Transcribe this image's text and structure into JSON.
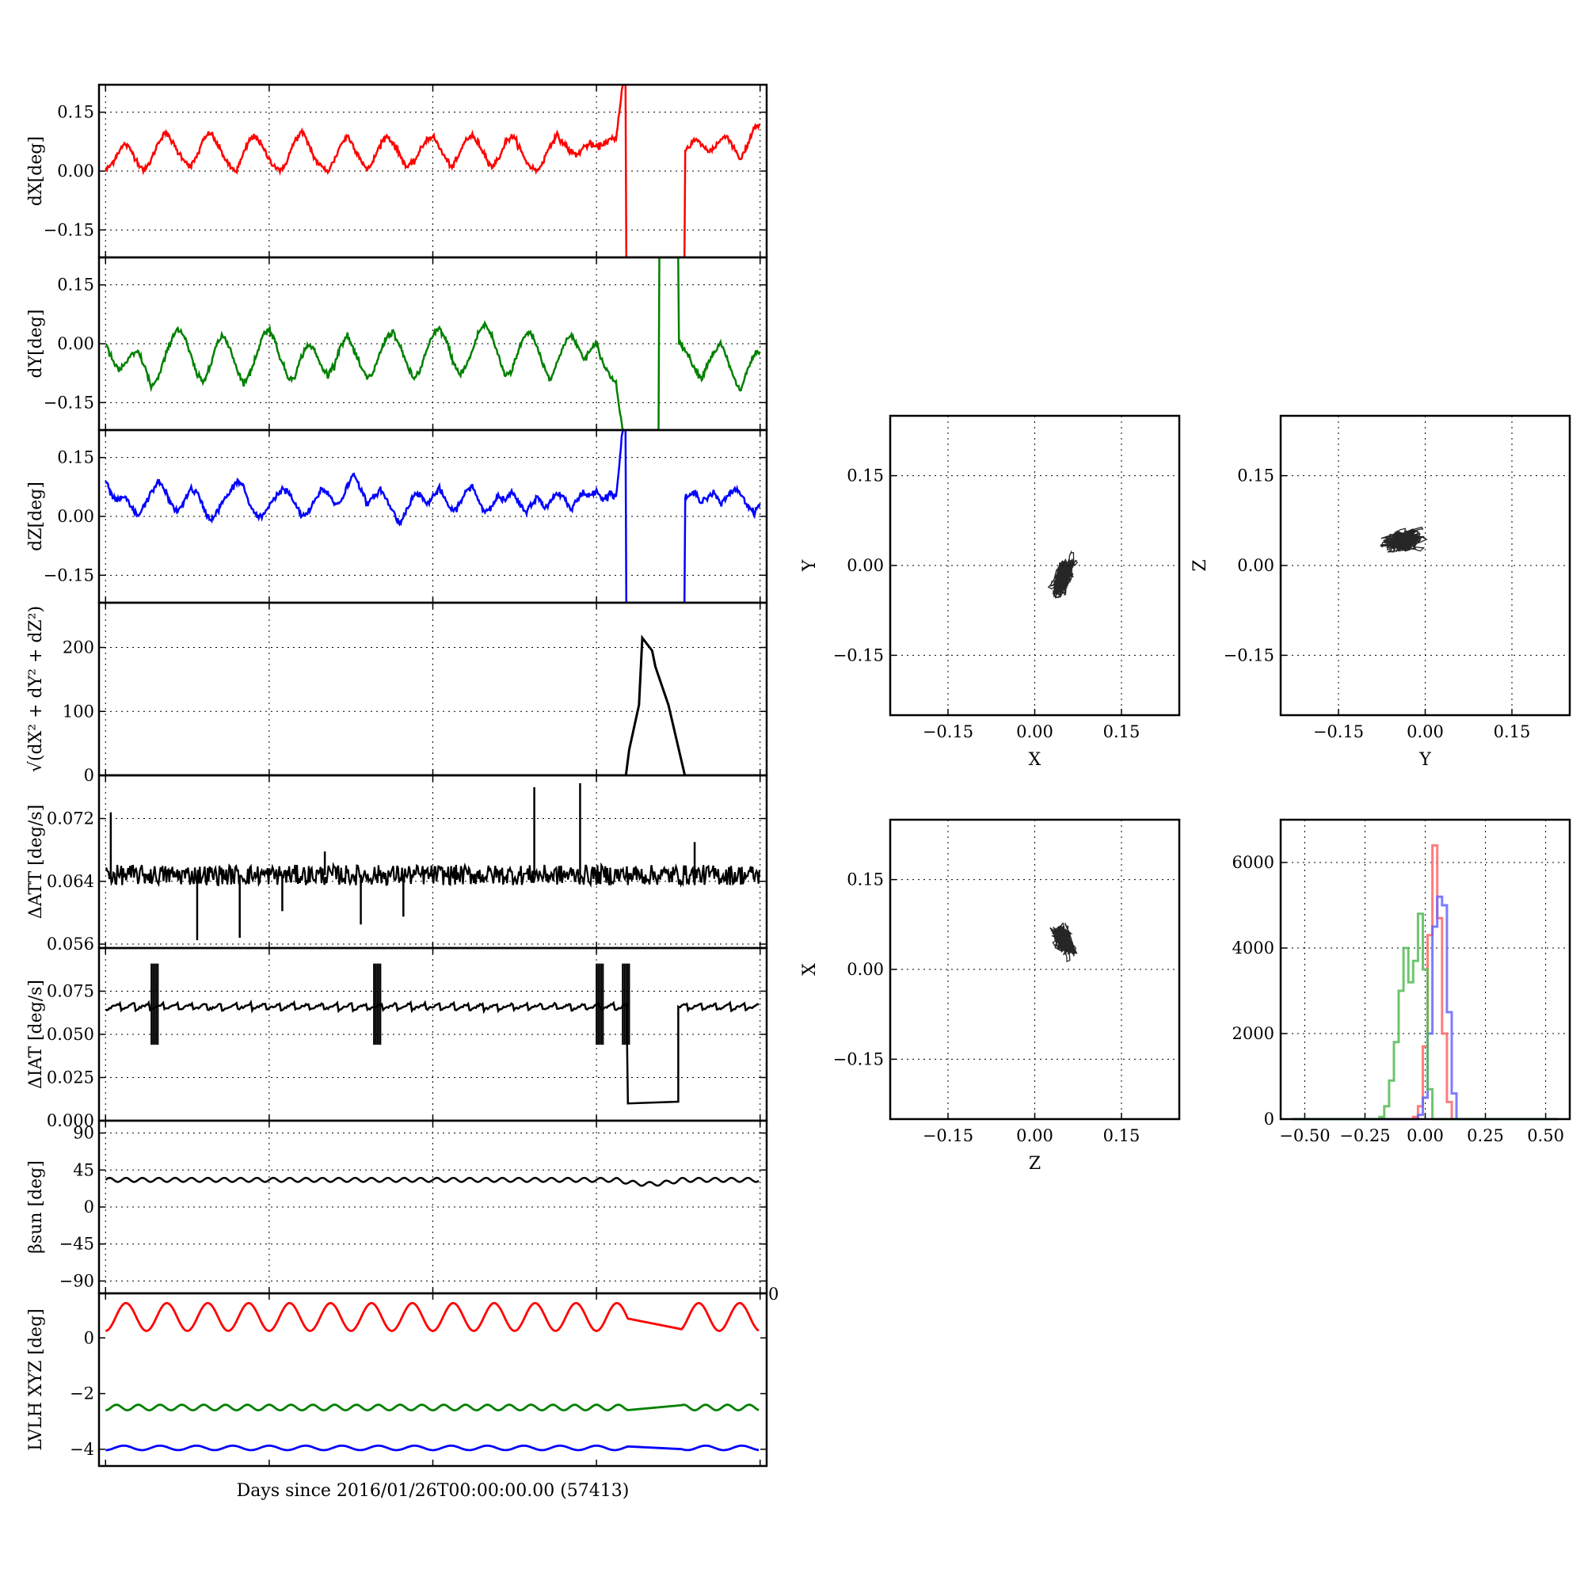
{
  "chart_data": [
    {
      "id": "dX",
      "type": "line",
      "ylabel": "dX[deg]",
      "color": "#ff0000",
      "ylim": [
        -0.22,
        0.22
      ],
      "yticks": [
        -0.15,
        0.0,
        0.15
      ],
      "yticklabels": [
        "−0.15",
        "0.00",
        "0.15"
      ],
      "grid": true,
      "x": [
        0,
        1,
        2,
        3,
        4,
        5,
        6,
        7,
        8,
        9,
        10,
        11,
        12,
        13,
        14,
        15,
        16,
        17,
        18,
        19,
        20,
        21,
        22,
        23,
        24,
        25,
        26,
        27,
        28,
        29,
        30,
        31,
        32,
        33,
        34,
        35,
        36,
        37,
        38,
        39,
        40,
        41,
        42,
        43,
        44,
        45,
        46,
        47,
        48,
        49,
        50,
        51,
        52,
        53,
        54,
        55,
        56,
        57,
        58,
        59,
        60,
        61,
        62,
        63,
        64,
        65,
        66,
        67,
        68,
        69,
        70,
        71,
        72,
        73,
        74,
        75,
        76,
        77,
        78,
        79,
        80,
        81,
        82,
        83,
        84,
        85,
        86,
        87,
        88,
        89,
        90,
        91,
        92,
        93,
        94,
        95,
        96,
        97,
        98,
        99,
        100
      ],
      "y": [
        0.0,
        0.02,
        0.05,
        0.07,
        0.05,
        0.02,
        0.0,
        0.03,
        0.07,
        0.1,
        0.08,
        0.05,
        0.03,
        0.01,
        0.04,
        0.08,
        0.1,
        0.07,
        0.04,
        0.01,
        0.0,
        0.04,
        0.08,
        0.09,
        0.06,
        0.03,
        0.01,
        0.0,
        0.04,
        0.08,
        0.1,
        0.07,
        0.03,
        0.01,
        0.0,
        0.03,
        0.07,
        0.09,
        0.06,
        0.03,
        0.0,
        0.03,
        0.07,
        0.09,
        0.07,
        0.04,
        0.01,
        0.02,
        0.05,
        0.08,
        0.09,
        0.06,
        0.03,
        0.01,
        0.04,
        0.08,
        0.09,
        0.07,
        0.04,
        0.01,
        0.03,
        0.07,
        0.09,
        0.07,
        0.03,
        0.01,
        0.0,
        0.03,
        0.07,
        0.09,
        0.07,
        0.05,
        0.04,
        0.06,
        0.07,
        0.06,
        0.07,
        0.08,
        0.08,
        0.22,
        -0.22,
        -0.22,
        -0.22,
        -0.22,
        -0.22,
        -0.22,
        -0.22,
        -0.22,
        -0.22,
        0.06,
        0.08,
        0.07,
        0.05,
        0.06,
        0.08,
        0.09,
        0.06,
        0.03,
        0.06,
        0.11,
        0.12
      ]
    },
    {
      "id": "dY",
      "type": "line",
      "ylabel": "dY[deg]",
      "color": "#008000",
      "ylim": [
        -0.22,
        0.22
      ],
      "yticks": [
        -0.15,
        0.0,
        0.15
      ],
      "yticklabels": [
        "−0.15",
        "0.00",
        "0.15"
      ],
      "grid": true,
      "x": [
        0,
        1,
        2,
        3,
        4,
        5,
        6,
        7,
        8,
        9,
        10,
        11,
        12,
        13,
        14,
        15,
        16,
        17,
        18,
        19,
        20,
        21,
        22,
        23,
        24,
        25,
        26,
        27,
        28,
        29,
        30,
        31,
        32,
        33,
        34,
        35,
        36,
        37,
        38,
        39,
        40,
        41,
        42,
        43,
        44,
        45,
        46,
        47,
        48,
        49,
        50,
        51,
        52,
        53,
        54,
        55,
        56,
        57,
        58,
        59,
        60,
        61,
        62,
        63,
        64,
        65,
        66,
        67,
        68,
        69,
        70,
        71,
        72,
        73,
        74,
        75,
        76,
        77,
        78,
        79,
        80,
        81,
        82,
        83,
        84,
        85,
        86,
        87,
        88,
        89,
        90,
        91,
        92,
        93,
        94,
        95,
        96,
        97,
        98,
        99,
        100
      ],
      "y": [
        0.0,
        -0.04,
        -0.07,
        -0.05,
        -0.03,
        -0.02,
        -0.06,
        -0.11,
        -0.09,
        -0.04,
        0.01,
        0.04,
        0.02,
        -0.03,
        -0.08,
        -0.1,
        -0.05,
        0.0,
        0.02,
        -0.01,
        -0.06,
        -0.1,
        -0.08,
        -0.03,
        0.02,
        0.04,
        0.0,
        -0.05,
        -0.09,
        -0.08,
        -0.03,
        0.0,
        -0.02,
        -0.06,
        -0.08,
        -0.05,
        0.0,
        0.02,
        -0.02,
        -0.06,
        -0.09,
        -0.07,
        -0.02,
        0.02,
        0.03,
        -0.01,
        -0.05,
        -0.09,
        -0.07,
        -0.02,
        0.02,
        0.04,
        0.01,
        -0.04,
        -0.08,
        -0.06,
        -0.02,
        0.03,
        0.05,
        0.02,
        -0.03,
        -0.08,
        -0.07,
        -0.02,
        0.02,
        0.03,
        -0.01,
        -0.06,
        -0.09,
        -0.05,
        0.0,
        0.02,
        0.0,
        -0.04,
        -0.02,
        0.0,
        -0.05,
        -0.08,
        -0.1,
        -0.22,
        -0.22,
        -0.22,
        -0.22,
        -0.22,
        -0.22,
        0.22,
        0.22,
        0.22,
        0.0,
        -0.03,
        -0.06,
        -0.09,
        -0.05,
        -0.02,
        0.0,
        -0.04,
        -0.09,
        -0.12,
        -0.07,
        -0.03,
        -0.02
      ]
    },
    {
      "id": "dZ",
      "type": "line",
      "ylabel": "dZ[deg]",
      "color": "#0000ff",
      "ylim": [
        -0.22,
        0.22
      ],
      "yticks": [
        -0.15,
        0.0,
        0.15
      ],
      "yticklabels": [
        "−0.15",
        "0.00",
        "0.15"
      ],
      "grid": true,
      "x": [
        0,
        1,
        2,
        3,
        4,
        5,
        6,
        7,
        8,
        9,
        10,
        11,
        12,
        13,
        14,
        15,
        16,
        17,
        18,
        19,
        20,
        21,
        22,
        23,
        24,
        25,
        26,
        27,
        28,
        29,
        30,
        31,
        32,
        33,
        34,
        35,
        36,
        37,
        38,
        39,
        40,
        41,
        42,
        43,
        44,
        45,
        46,
        47,
        48,
        49,
        50,
        51,
        52,
        53,
        54,
        55,
        56,
        57,
        58,
        59,
        60,
        61,
        62,
        63,
        64,
        65,
        66,
        67,
        68,
        69,
        70,
        71,
        72,
        73,
        74,
        75,
        76,
        77,
        78,
        79,
        80,
        81,
        82,
        83,
        84,
        85,
        86,
        87,
        88,
        89,
        90,
        91,
        92,
        93,
        94,
        95,
        96,
        97,
        98,
        99,
        100
      ],
      "y": [
        0.09,
        0.05,
        0.04,
        0.05,
        0.02,
        0.0,
        0.03,
        0.06,
        0.09,
        0.07,
        0.03,
        0.01,
        0.04,
        0.07,
        0.06,
        0.02,
        -0.01,
        0.01,
        0.04,
        0.06,
        0.09,
        0.08,
        0.03,
        0.0,
        0.0,
        0.03,
        0.05,
        0.07,
        0.06,
        0.03,
        0.0,
        0.01,
        0.04,
        0.07,
        0.06,
        0.03,
        0.04,
        0.08,
        0.11,
        0.07,
        0.03,
        0.05,
        0.07,
        0.04,
        0.01,
        -0.02,
        0.02,
        0.05,
        0.06,
        0.03,
        0.05,
        0.07,
        0.04,
        0.01,
        0.03,
        0.06,
        0.08,
        0.04,
        0.01,
        0.03,
        0.05,
        0.04,
        0.06,
        0.04,
        0.01,
        0.03,
        0.05,
        0.02,
        0.04,
        0.06,
        0.05,
        0.02,
        0.04,
        0.06,
        0.05,
        0.07,
        0.04,
        0.06,
        0.05,
        0.22,
        -0.22,
        -0.22,
        -0.22,
        -0.22,
        -0.22,
        -0.22,
        -0.22,
        -0.22,
        -0.22,
        0.05,
        0.06,
        0.04,
        0.05,
        0.06,
        0.03,
        0.05,
        0.07,
        0.06,
        0.03,
        0.01,
        0.03
      ]
    },
    {
      "id": "norm",
      "type": "line",
      "ylabel": "√(dX² + dY² + dZ²)",
      "color": "#000000",
      "ylim": [
        0,
        270
      ],
      "yticks": [
        0,
        100,
        200
      ],
      "yticklabels": [
        "0",
        "100",
        "200"
      ],
      "grid": true,
      "x": [
        0,
        79.5,
        80.0,
        81.5,
        82.0,
        83.5,
        84.0,
        86.0,
        88.5,
        100
      ],
      "y": [
        0,
        0,
        40,
        110,
        215,
        195,
        170,
        110,
        0,
        0
      ]
    },
    {
      "id": "dATT",
      "type": "line",
      "ylabel": "ΔATT [deg/s]",
      "color": "#000000",
      "ylim": [
        0.0555,
        0.0775
      ],
      "yticks": [
        0.056,
        0.064,
        0.072
      ],
      "yticklabels": [
        "0.056",
        "0.064",
        "0.072"
      ],
      "grid": true,
      "base": 0.0648,
      "noise": 0.0013,
      "spikes": [
        {
          "x": 0.8,
          "y": 0.0728
        },
        {
          "x": 14.0,
          "y": 0.0565
        },
        {
          "x": 20.5,
          "y": 0.0568
        },
        {
          "x": 27.0,
          "y": 0.0602
        },
        {
          "x": 33.5,
          "y": 0.0678
        },
        {
          "x": 39.0,
          "y": 0.0585
        },
        {
          "x": 45.5,
          "y": 0.0595
        },
        {
          "x": 65.5,
          "y": 0.076
        },
        {
          "x": 72.5,
          "y": 0.0765
        },
        {
          "x": 90.0,
          "y": 0.069
        }
      ]
    },
    {
      "id": "dIAT",
      "type": "line",
      "ylabel": "ΔIAT [deg/s]",
      "color": "#000000",
      "ylim": [
        0,
        0.1
      ],
      "yticks": [
        0.0,
        0.025,
        0.05,
        0.075
      ],
      "yticklabels": [
        "0.000",
        "0.025",
        "0.050",
        "0.075"
      ],
      "grid": true,
      "base": 0.066,
      "bursts": [
        7.5,
        41.5,
        75.5,
        79.5
      ],
      "burst_hi": 0.091,
      "burst_lo": 0.044,
      "gap": {
        "start": 79.8,
        "end": 87.5,
        "y_start": 0.01,
        "y_end": 0.011
      }
    },
    {
      "id": "beta",
      "type": "line",
      "ylabel": "βsun [deg]",
      "color": "#000000",
      "ylim": [
        -105,
        105
      ],
      "yticks": [
        -90,
        -45,
        0,
        45,
        90
      ],
      "yticklabels": [
        "−90",
        "−45",
        "0",
        "45",
        "90"
      ],
      "grid": true,
      "base": 33,
      "amplitude": 2.5,
      "cycles": 40
    },
    {
      "id": "lvlh",
      "type": "line",
      "ylabel": "LVLH XYZ [deg]",
      "color": "#000000",
      "ylim": [
        -4.6,
        1.6
      ],
      "yticks": [
        -4,
        -2,
        0
      ],
      "yticklabels": [
        "−4",
        "−2",
        "0"
      ],
      "xlabel": "Days since 2016/01/26T00:00:00.00 (57413)",
      "corner_label": "0",
      "grid": false,
      "series": [
        {
          "color": "#ff0000",
          "base": 0.75,
          "amplitude": 0.5,
          "cycles": 16
        },
        {
          "color": "#008000",
          "base": -2.5,
          "amplitude": 0.1,
          "cycles": 30
        },
        {
          "color": "#0000ff",
          "base": -3.95,
          "amplitude": 0.08,
          "cycles": 18
        }
      ],
      "gap": {
        "start": 80,
        "end": 88
      }
    }
  ],
  "scatter_data": [
    {
      "id": "XY",
      "type": "scatter",
      "xlabel": "X",
      "ylabel": "Y",
      "center": [
        0.05,
        -0.02
      ],
      "spread": [
        0.025,
        0.04
      ],
      "rho": 0.55
    },
    {
      "id": "YZ",
      "type": "scatter",
      "xlabel": "Y",
      "ylabel": "Z",
      "center": [
        -0.04,
        0.04
      ],
      "spread": [
        0.045,
        0.025
      ],
      "rho": 0.25
    },
    {
      "id": "ZX",
      "type": "scatter",
      "xlabel": "Z",
      "ylabel": "X",
      "center": [
        0.05,
        0.05
      ],
      "spread": [
        0.025,
        0.035
      ],
      "rho": -0.45
    }
  ],
  "scatter_axes": {
    "lim": [
      -0.25,
      0.25
    ],
    "ticks": [
      -0.15,
      0.0,
      0.15
    ],
    "ticklabels": [
      "−0.15",
      "0.00",
      "0.15"
    ]
  },
  "hist_data": {
    "type": "histogram",
    "xlim": [
      -0.6,
      0.6
    ],
    "ylim": [
      0,
      7000
    ],
    "xticks": [
      -0.5,
      -0.25,
      0.0,
      0.25,
      0.5
    ],
    "xticklabels": [
      "−0.50",
      "−0.25",
      "0.00",
      "0.25",
      "0.50"
    ],
    "yticks": [
      0,
      2000,
      4000,
      6000
    ],
    "yticklabels": [
      "0",
      "2000",
      "4000",
      "6000"
    ],
    "series": [
      {
        "color": "#ff6666",
        "bin_centers": [
          -0.06,
          -0.04,
          -0.02,
          0.0,
          0.02,
          0.04,
          0.06,
          0.08,
          0.1,
          0.12
        ],
        "counts": [
          0,
          50,
          300,
          1700,
          4300,
          6400,
          4700,
          2000,
          400,
          0
        ]
      },
      {
        "color": "#6666ff",
        "bin_centers": [
          -0.04,
          -0.02,
          0.0,
          0.02,
          0.04,
          0.06,
          0.08,
          0.1,
          0.12,
          0.14
        ],
        "counts": [
          0,
          100,
          500,
          2000,
          4500,
          5200,
          5000,
          2500,
          600,
          0
        ]
      },
      {
        "color": "#55bb55",
        "bin_centers": [
          -0.2,
          -0.18,
          -0.16,
          -0.14,
          -0.12,
          -0.1,
          -0.08,
          -0.06,
          -0.04,
          -0.02,
          0.0,
          0.02,
          0.04
        ],
        "counts": [
          0,
          50,
          300,
          900,
          1800,
          3000,
          4000,
          3200,
          3700,
          4800,
          3500,
          700,
          0
        ]
      }
    ]
  }
}
